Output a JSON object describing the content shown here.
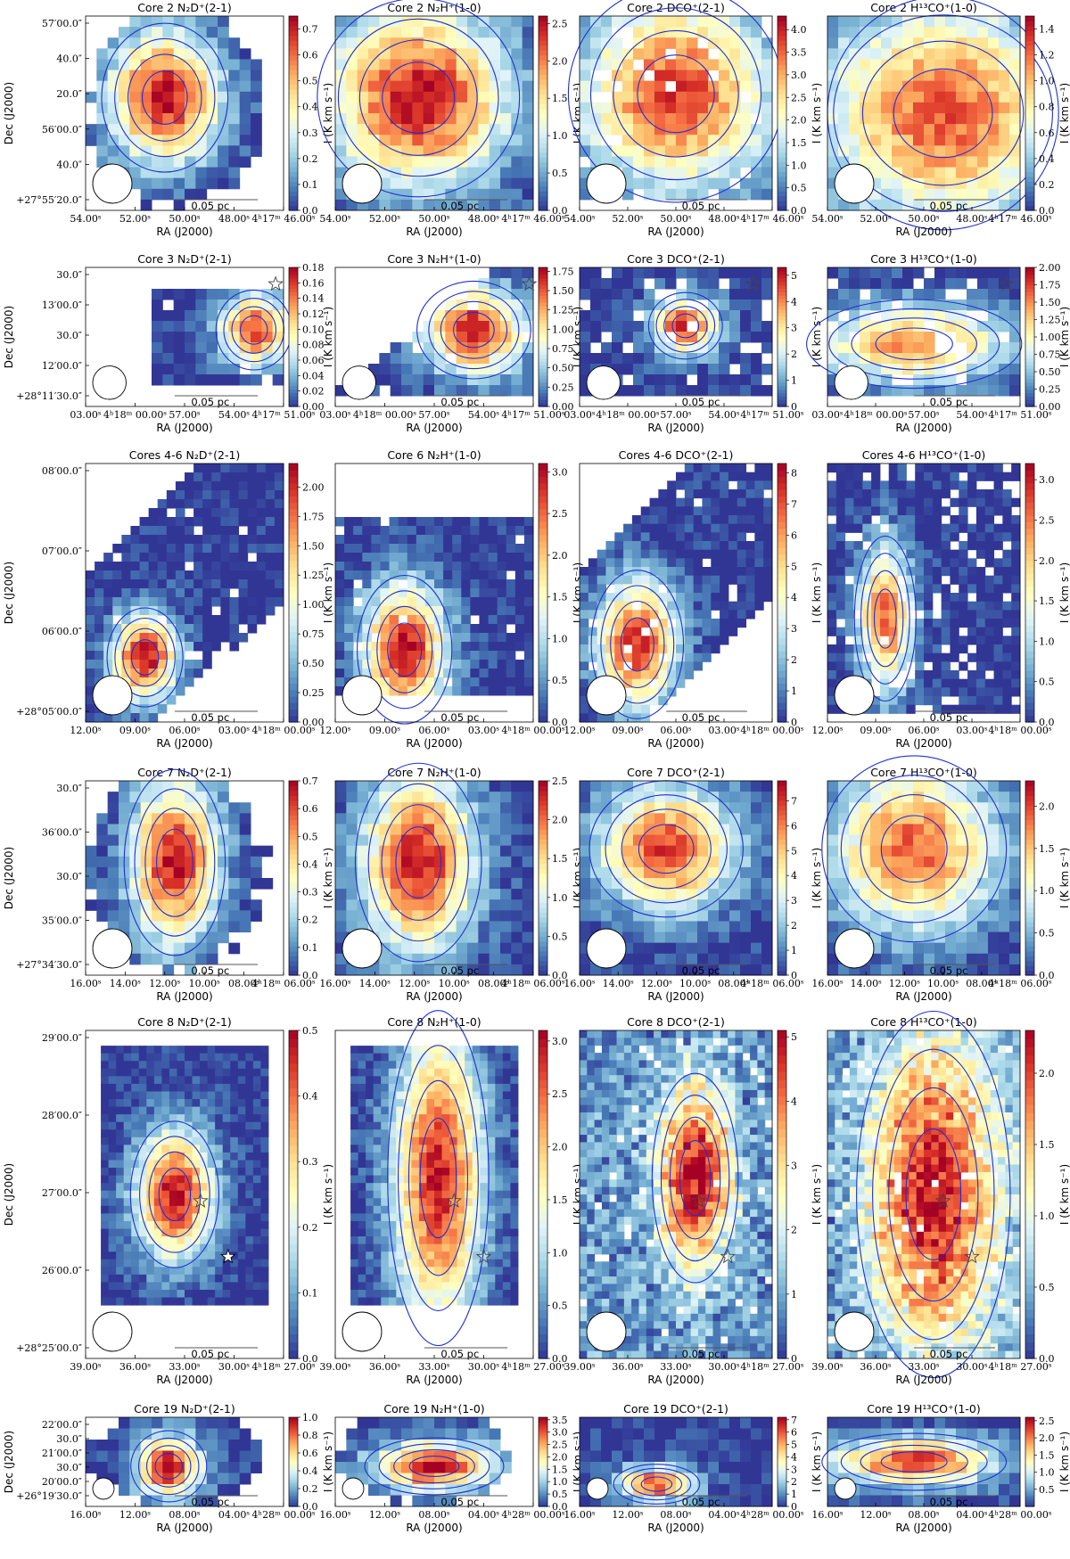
{
  "figure": {
    "description_rows": 6,
    "colormap": [
      "#313695",
      "#4575b4",
      "#74add1",
      "#abd9e9",
      "#e0f3f8",
      "#ffffbf",
      "#fee090",
      "#fdae61",
      "#f46d43",
      "#d73027",
      "#a50026"
    ],
    "contour_color": "#1f2fd6",
    "scale_label": "0.05 pc",
    "ra_label": "RA (J2000)",
    "dec_label": "Dec (J2000)",
    "colorbar_label": "I (K km s⁻¹)",
    "beam_marker": "beam-circle",
    "star_marker": "star-icon"
  },
  "chart_data": [
    {
      "row": 1,
      "type": "heatmap",
      "ra_ticks": [
        "54.00ˢ",
        "52.00ˢ",
        "50.00ˢ",
        "48.00ˢ",
        "4ʰ17ᵐ 46.00ˢ"
      ],
      "dec_ticks": [
        "57′00.0″",
        "40.0″",
        "20.0″",
        "56′00.0″",
        "40.0″",
        "+27°55′20.0″"
      ],
      "panels": [
        {
          "title": "Core 2 N₂D⁺(2-1)",
          "vmax": 0.75,
          "ticks": [
            "0.0",
            "0.1",
            "0.2",
            "0.3",
            "0.4",
            "0.5",
            "0.6",
            "0.7"
          ],
          "peak": 0.72,
          "cx": 0.4,
          "cy": 0.42,
          "sx": 0.2,
          "sy": 0.24,
          "cov": "core",
          "stars": []
        },
        {
          "title": "Core 2 N₂H⁺(1-0)",
          "vmax": 2.6,
          "ticks": [
            "0.0",
            "0.5",
            "1.0",
            "1.5",
            "2.0",
            "2.5"
          ],
          "peak": 2.5,
          "cx": 0.42,
          "cy": 0.42,
          "sx": 0.32,
          "sy": 0.32,
          "cov": "full",
          "stars": []
        },
        {
          "title": "Core 2 DCO⁺(2-1)",
          "vmax": 4.3,
          "ticks": [
            "0.0",
            "0.5",
            "1.0",
            "1.5",
            "2.0",
            "2.5",
            "3.0",
            "3.5",
            "4.0"
          ],
          "peak": 3.8,
          "cx": 0.5,
          "cy": 0.4,
          "sx": 0.35,
          "sy": 0.35,
          "cov": "patchy",
          "stars": []
        },
        {
          "title": "Core 2 H¹³CO⁺(1-0)",
          "vmax": 1.5,
          "ticks": [
            "0.0",
            "0.2",
            "0.4",
            "0.6",
            "0.8",
            "1.0",
            "1.2",
            "1.4"
          ],
          "peak": 1.25,
          "cx": 0.6,
          "cy": 0.5,
          "sx": 0.45,
          "sy": 0.4,
          "cov": "full",
          "stars": []
        }
      ]
    },
    {
      "row": 2,
      "type": "heatmap",
      "ra_ticks": [
        "03.00ˢ",
        "4ʰ18ᵐ 00.00ˢ",
        "57.00ˢ",
        "54.00ˢ",
        "4ʰ17ᵐ 51.00ˢ"
      ],
      "dec_ticks": [
        "30.0″",
        "13′00.0″",
        "30.0″",
        "12′00.0″",
        "+28°11′30.0″"
      ],
      "panels": [
        {
          "title": "Core 3 N₂D⁺(2-1)",
          "vmax": 0.18,
          "ticks": [
            "0.00",
            "0.02",
            "0.04",
            "0.06",
            "0.08",
            "0.10",
            "0.12",
            "0.14",
            "0.16",
            "0.18"
          ],
          "peak": 0.16,
          "cx": 0.85,
          "cy": 0.45,
          "sx": 0.12,
          "sy": 0.18,
          "cov": "ring",
          "stars": [
            {
              "x": 0.96,
              "y": 0.12,
              "filled": false
            }
          ]
        },
        {
          "title": "Core 3 N₂H⁺(1-0)",
          "vmax": 1.8,
          "ticks": [
            "0.00",
            "0.25",
            "0.50",
            "0.75",
            "1.00",
            "1.25",
            "1.50",
            "1.75"
          ],
          "peak": 1.7,
          "cx": 0.7,
          "cy": 0.45,
          "sx": 0.18,
          "sy": 0.22,
          "cov": "diag",
          "stars": [
            {
              "x": 0.98,
              "y": 0.12,
              "filled": false
            }
          ]
        },
        {
          "title": "Core 3 DCO⁺(2-1)",
          "vmax": 5.3,
          "ticks": [
            "0",
            "1",
            "2",
            "3",
            "4",
            "5"
          ],
          "peak": 5.0,
          "cx": 0.55,
          "cy": 0.42,
          "sx": 0.12,
          "sy": 0.15,
          "cov": "patchy",
          "stars": [
            {
              "x": 0.9,
              "y": 0.12,
              "filled": false
            }
          ]
        },
        {
          "title": "Core 3 H¹³CO⁺(1-0)",
          "vmax": 2.0,
          "ticks": [
            "0.00",
            "0.25",
            "0.50",
            "0.75",
            "1.00",
            "1.25",
            "1.50",
            "1.75",
            "2.00"
          ],
          "peak": 1.5,
          "cx": 0.45,
          "cy": 0.55,
          "sx": 0.35,
          "sy": 0.2,
          "cov": "patchy",
          "stars": [
            {
              "x": 0.93,
              "y": 0.12,
              "filled": false
            }
          ]
        }
      ]
    },
    {
      "row": 3,
      "type": "heatmap",
      "ra_ticks": [
        "12.00ˢ",
        "09.00ˢ",
        "06.00ˢ",
        "03.00ˢ",
        "4ʰ18ᵐ 00.00ˢ"
      ],
      "dec_ticks": [
        "08′00.0″",
        "07′00.0″",
        "06′00.0″",
        "+28°05′00.0″"
      ],
      "panels": [
        {
          "title": "Cores 4-6 N₂D⁺(2-1)",
          "vmax": 2.2,
          "ticks": [
            "0.00",
            "0.25",
            "0.50",
            "0.75",
            "1.00",
            "1.25",
            "1.50",
            "1.75",
            "2.00"
          ],
          "peak": 2.1,
          "cx": 0.3,
          "cy": 0.75,
          "sx": 0.12,
          "sy": 0.12,
          "cov": "filament",
          "stars": []
        },
        {
          "title": "Core 6 N₂H⁺(1-0)",
          "vmax": 3.1,
          "ticks": [
            "0.0",
            "0.5",
            "1.0",
            "1.5",
            "2.0",
            "2.5",
            "3.0"
          ],
          "peak": 3.0,
          "cx": 0.35,
          "cy": 0.72,
          "sx": 0.15,
          "sy": 0.18,
          "cov": "lower",
          "stars": []
        },
        {
          "title": "Cores 4-6 DCO⁺(2-1)",
          "vmax": 8.3,
          "ticks": [
            "0",
            "1",
            "2",
            "3",
            "4",
            "5",
            "6",
            "7",
            "8"
          ],
          "peak": 7.5,
          "cx": 0.3,
          "cy": 0.7,
          "sx": 0.15,
          "sy": 0.18,
          "cov": "filament",
          "stars": []
        },
        {
          "title": "Cores 4-6 H¹³CO⁺(1-0)",
          "vmax": 3.2,
          "ticks": [
            "0.0",
            "0.5",
            "1.0",
            "1.5",
            "2.0",
            "2.5",
            "3.0"
          ],
          "peak": 2.6,
          "cx": 0.3,
          "cy": 0.6,
          "sx": 0.1,
          "sy": 0.2,
          "cov": "patchy",
          "stars": []
        }
      ]
    },
    {
      "row": 4,
      "type": "heatmap",
      "ra_ticks": [
        "16.00ˢ",
        "14.00ˢ",
        "12.00ˢ",
        "10.00ˢ",
        "08.00ˢ",
        "4ʰ18ᵐ 06.00ˢ"
      ],
      "dec_ticks": [
        "30.0″",
        "36′00.0″",
        "30.0″",
        "35′00.0″",
        "+27°34′30.0″"
      ],
      "panels": [
        {
          "title": "Core 7 N₂D⁺(2-1)",
          "vmax": 0.7,
          "ticks": [
            "0.0",
            "0.1",
            "0.2",
            "0.3",
            "0.4",
            "0.5",
            "0.6",
            "0.7"
          ],
          "peak": 0.66,
          "cx": 0.45,
          "cy": 0.42,
          "sx": 0.16,
          "sy": 0.3,
          "cov": "core",
          "stars": []
        },
        {
          "title": "Core 7 N₂H⁺(1-0)",
          "vmax": 2.5,
          "ticks": [
            "0.0",
            "0.5",
            "1.0",
            "1.5",
            "2.0",
            "2.5"
          ],
          "peak": 2.4,
          "cx": 0.42,
          "cy": 0.42,
          "sx": 0.2,
          "sy": 0.32,
          "cov": "full",
          "stars": []
        },
        {
          "title": "Core 7 DCO⁺(2-1)",
          "vmax": 7.8,
          "ticks": [
            "0",
            "1",
            "2",
            "3",
            "4",
            "5",
            "6",
            "7"
          ],
          "peak": 7.0,
          "cx": 0.45,
          "cy": 0.35,
          "sx": 0.25,
          "sy": 0.22,
          "cov": "full",
          "stars": []
        },
        {
          "title": "Core 7 H¹³CO⁺(1-0)",
          "vmax": 2.3,
          "ticks": [
            "0.0",
            "0.5",
            "1.0",
            "1.5",
            "2.0"
          ],
          "peak": 1.9,
          "cx": 0.45,
          "cy": 0.35,
          "sx": 0.3,
          "sy": 0.3,
          "cov": "full",
          "stars": []
        }
      ]
    },
    {
      "row": 5,
      "type": "heatmap",
      "ra_ticks": [
        "39.00ˢ",
        "36.00ˢ",
        "33.00ˢ",
        "30.00ˢ",
        "4ʰ18ᵐ 27.00ˢ"
      ],
      "dec_ticks": [
        "29′00.0″",
        "28′00.0″",
        "27′00.0″",
        "26′00.0″",
        "+28°25′00.0″"
      ],
      "panels": [
        {
          "title": "Core 8 N₂D⁺(2-1)",
          "vmax": 0.5,
          "ticks": [
            "0.0",
            "0.1",
            "0.2",
            "0.3",
            "0.4",
            "0.5"
          ],
          "peak": 0.48,
          "cx": 0.45,
          "cy": 0.5,
          "sx": 0.14,
          "sy": 0.14,
          "cov": "tall",
          "stars": [
            {
              "x": 0.58,
              "y": 0.52,
              "filled": false
            },
            {
              "x": 0.72,
              "y": 0.69,
              "filled": true
            }
          ]
        },
        {
          "title": "Core 8 N₂H⁺(1-0)",
          "vmax": 3.1,
          "ticks": [
            "0.0",
            "0.5",
            "1.0",
            "1.5",
            "2.0",
            "2.5",
            "3.0"
          ],
          "peak": 2.9,
          "cx": 0.52,
          "cy": 0.45,
          "sx": 0.16,
          "sy": 0.32,
          "cov": "tall",
          "stars": [
            {
              "x": 0.6,
              "y": 0.52,
              "filled": false
            },
            {
              "x": 0.75,
              "y": 0.69,
              "filled": false
            }
          ]
        },
        {
          "title": "Core 8 DCO⁺(2-1)",
          "vmax": 5.1,
          "ticks": [
            "0",
            "1",
            "2",
            "3",
            "4",
            "5"
          ],
          "peak": 4.5,
          "cx": 0.6,
          "cy": 0.45,
          "sx": 0.14,
          "sy": 0.2,
          "cov": "noisy",
          "stars": [
            {
              "x": 0.62,
              "y": 0.52,
              "filled": false
            },
            {
              "x": 0.77,
              "y": 0.69,
              "filled": false
            }
          ]
        },
        {
          "title": "Core 8 H¹³CO⁺(1-0)",
          "vmax": 2.3,
          "ticks": [
            "0.0",
            "0.5",
            "1.0",
            "1.5",
            "2.0"
          ],
          "peak": 1.9,
          "cx": 0.55,
          "cy": 0.5,
          "sx": 0.25,
          "sy": 0.35,
          "cov": "noisy",
          "stars": [
            {
              "x": 0.6,
              "y": 0.52,
              "filled": false
            },
            {
              "x": 0.75,
              "y": 0.69,
              "filled": false
            }
          ]
        }
      ]
    },
    {
      "row": 6,
      "type": "heatmap",
      "ra_ticks": [
        "16.00ˢ",
        "12.00ˢ",
        "08.00ˢ",
        "04.00ˢ",
        "4ʰ28ᵐ 00.00ˢ"
      ],
      "dec_ticks": [
        "22′00.0″",
        "30.0″",
        "21′00.0″",
        "30.0″",
        "20′00.0″",
        "+26°19′30.0″"
      ],
      "panels": [
        {
          "title": "Core 19 N₂D⁺(2-1)",
          "vmax": 1.0,
          "ticks": [
            "0.0",
            "0.2",
            "0.4",
            "0.6",
            "0.8",
            "1.0"
          ],
          "peak": 0.95,
          "cx": 0.42,
          "cy": 0.55,
          "sx": 0.12,
          "sy": 0.25,
          "cov": "core",
          "stars": []
        },
        {
          "title": "Core 19 N₂H⁺(1-0)",
          "vmax": 3.6,
          "ticks": [
            "0.0",
            "0.5",
            "1.0",
            "1.5",
            "2.0",
            "2.5",
            "3.0",
            "3.5"
          ],
          "peak": 3.4,
          "cx": 0.5,
          "cy": 0.55,
          "sx": 0.22,
          "sy": 0.2,
          "cov": "core",
          "stars": []
        },
        {
          "title": "Core 19 DCO⁺(2-1)",
          "vmax": 7.2,
          "ticks": [
            "0",
            "1",
            "2",
            "3",
            "4",
            "5",
            "6",
            "7"
          ],
          "peak": 6.5,
          "cx": 0.4,
          "cy": 0.75,
          "sx": 0.14,
          "sy": 0.14,
          "cov": "full",
          "stars": []
        },
        {
          "title": "Core 19 H¹³CO⁺(1-0)",
          "vmax": 2.6,
          "ticks": [
            "0.5",
            "1.0",
            "1.5",
            "2.0",
            "2.5"
          ],
          "peak": 2.3,
          "cx": 0.45,
          "cy": 0.5,
          "sx": 0.3,
          "sy": 0.2,
          "cov": "full",
          "stars": []
        }
      ]
    }
  ]
}
